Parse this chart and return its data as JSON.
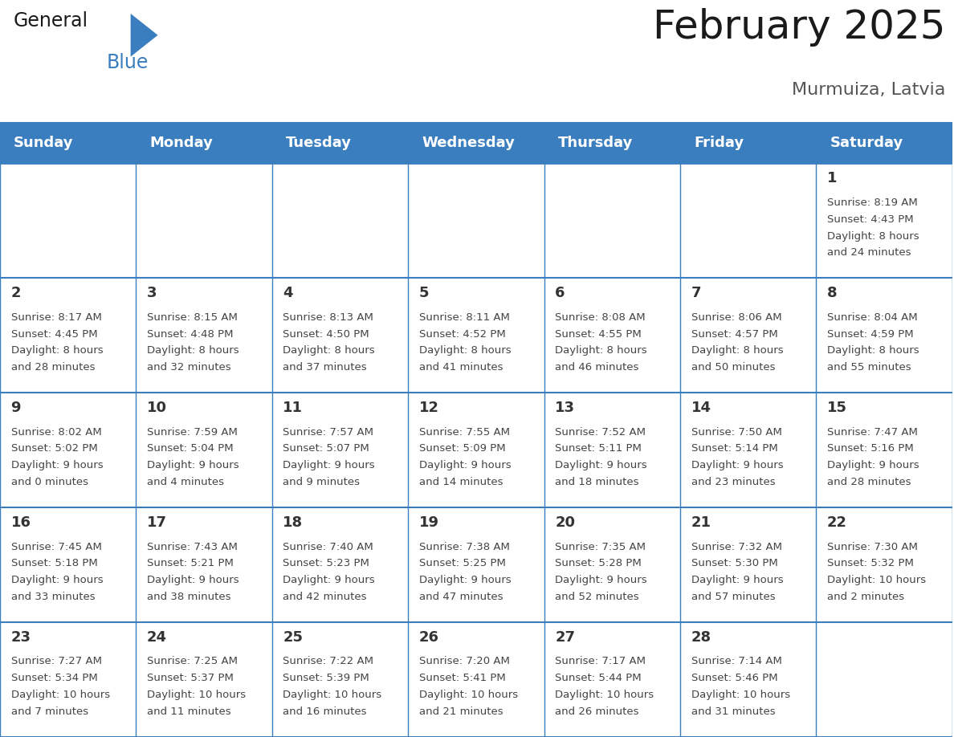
{
  "title": "February 2025",
  "subtitle": "Murmuiza, Latvia",
  "header_bg": "#3A7EBF",
  "header_text_color": "#FFFFFF",
  "cell_bg": "#FFFFFF",
  "border_color": "#3A7EBF",
  "day_headers": [
    "Sunday",
    "Monday",
    "Tuesday",
    "Wednesday",
    "Thursday",
    "Friday",
    "Saturday"
  ],
  "title_fontsize": 36,
  "subtitle_fontsize": 16,
  "header_fontsize": 13,
  "day_num_fontsize": 13,
  "info_fontsize": 9.5,
  "logo_general_color": "#1a1a1a",
  "logo_blue_color": "#3A7EBF",
  "days": [
    {
      "day": 1,
      "col": 6,
      "row": 0,
      "sunrise": "8:19 AM",
      "sunset": "4:43 PM",
      "daylight": "8 hours and 24 minutes"
    },
    {
      "day": 2,
      "col": 0,
      "row": 1,
      "sunrise": "8:17 AM",
      "sunset": "4:45 PM",
      "daylight": "8 hours and 28 minutes"
    },
    {
      "day": 3,
      "col": 1,
      "row": 1,
      "sunrise": "8:15 AM",
      "sunset": "4:48 PM",
      "daylight": "8 hours and 32 minutes"
    },
    {
      "day": 4,
      "col": 2,
      "row": 1,
      "sunrise": "8:13 AM",
      "sunset": "4:50 PM",
      "daylight": "8 hours and 37 minutes"
    },
    {
      "day": 5,
      "col": 3,
      "row": 1,
      "sunrise": "8:11 AM",
      "sunset": "4:52 PM",
      "daylight": "8 hours and 41 minutes"
    },
    {
      "day": 6,
      "col": 4,
      "row": 1,
      "sunrise": "8:08 AM",
      "sunset": "4:55 PM",
      "daylight": "8 hours and 46 minutes"
    },
    {
      "day": 7,
      "col": 5,
      "row": 1,
      "sunrise": "8:06 AM",
      "sunset": "4:57 PM",
      "daylight": "8 hours and 50 minutes"
    },
    {
      "day": 8,
      "col": 6,
      "row": 1,
      "sunrise": "8:04 AM",
      "sunset": "4:59 PM",
      "daylight": "8 hours and 55 minutes"
    },
    {
      "day": 9,
      "col": 0,
      "row": 2,
      "sunrise": "8:02 AM",
      "sunset": "5:02 PM",
      "daylight": "9 hours and 0 minutes"
    },
    {
      "day": 10,
      "col": 1,
      "row": 2,
      "sunrise": "7:59 AM",
      "sunset": "5:04 PM",
      "daylight": "9 hours and 4 minutes"
    },
    {
      "day": 11,
      "col": 2,
      "row": 2,
      "sunrise": "7:57 AM",
      "sunset": "5:07 PM",
      "daylight": "9 hours and 9 minutes"
    },
    {
      "day": 12,
      "col": 3,
      "row": 2,
      "sunrise": "7:55 AM",
      "sunset": "5:09 PM",
      "daylight": "9 hours and 14 minutes"
    },
    {
      "day": 13,
      "col": 4,
      "row": 2,
      "sunrise": "7:52 AM",
      "sunset": "5:11 PM",
      "daylight": "9 hours and 18 minutes"
    },
    {
      "day": 14,
      "col": 5,
      "row": 2,
      "sunrise": "7:50 AM",
      "sunset": "5:14 PM",
      "daylight": "9 hours and 23 minutes"
    },
    {
      "day": 15,
      "col": 6,
      "row": 2,
      "sunrise": "7:47 AM",
      "sunset": "5:16 PM",
      "daylight": "9 hours and 28 minutes"
    },
    {
      "day": 16,
      "col": 0,
      "row": 3,
      "sunrise": "7:45 AM",
      "sunset": "5:18 PM",
      "daylight": "9 hours and 33 minutes"
    },
    {
      "day": 17,
      "col": 1,
      "row": 3,
      "sunrise": "7:43 AM",
      "sunset": "5:21 PM",
      "daylight": "9 hours and 38 minutes"
    },
    {
      "day": 18,
      "col": 2,
      "row": 3,
      "sunrise": "7:40 AM",
      "sunset": "5:23 PM",
      "daylight": "9 hours and 42 minutes"
    },
    {
      "day": 19,
      "col": 3,
      "row": 3,
      "sunrise": "7:38 AM",
      "sunset": "5:25 PM",
      "daylight": "9 hours and 47 minutes"
    },
    {
      "day": 20,
      "col": 4,
      "row": 3,
      "sunrise": "7:35 AM",
      "sunset": "5:28 PM",
      "daylight": "9 hours and 52 minutes"
    },
    {
      "day": 21,
      "col": 5,
      "row": 3,
      "sunrise": "7:32 AM",
      "sunset": "5:30 PM",
      "daylight": "9 hours and 57 minutes"
    },
    {
      "day": 22,
      "col": 6,
      "row": 3,
      "sunrise": "7:30 AM",
      "sunset": "5:32 PM",
      "daylight": "10 hours and 2 minutes"
    },
    {
      "day": 23,
      "col": 0,
      "row": 4,
      "sunrise": "7:27 AM",
      "sunset": "5:34 PM",
      "daylight": "10 hours and 7 minutes"
    },
    {
      "day": 24,
      "col": 1,
      "row": 4,
      "sunrise": "7:25 AM",
      "sunset": "5:37 PM",
      "daylight": "10 hours and 11 minutes"
    },
    {
      "day": 25,
      "col": 2,
      "row": 4,
      "sunrise": "7:22 AM",
      "sunset": "5:39 PM",
      "daylight": "10 hours and 16 minutes"
    },
    {
      "day": 26,
      "col": 3,
      "row": 4,
      "sunrise": "7:20 AM",
      "sunset": "5:41 PM",
      "daylight": "10 hours and 21 minutes"
    },
    {
      "day": 27,
      "col": 4,
      "row": 4,
      "sunrise": "7:17 AM",
      "sunset": "5:44 PM",
      "daylight": "10 hours and 26 minutes"
    },
    {
      "day": 28,
      "col": 5,
      "row": 4,
      "sunrise": "7:14 AM",
      "sunset": "5:46 PM",
      "daylight": "10 hours and 31 minutes"
    }
  ]
}
